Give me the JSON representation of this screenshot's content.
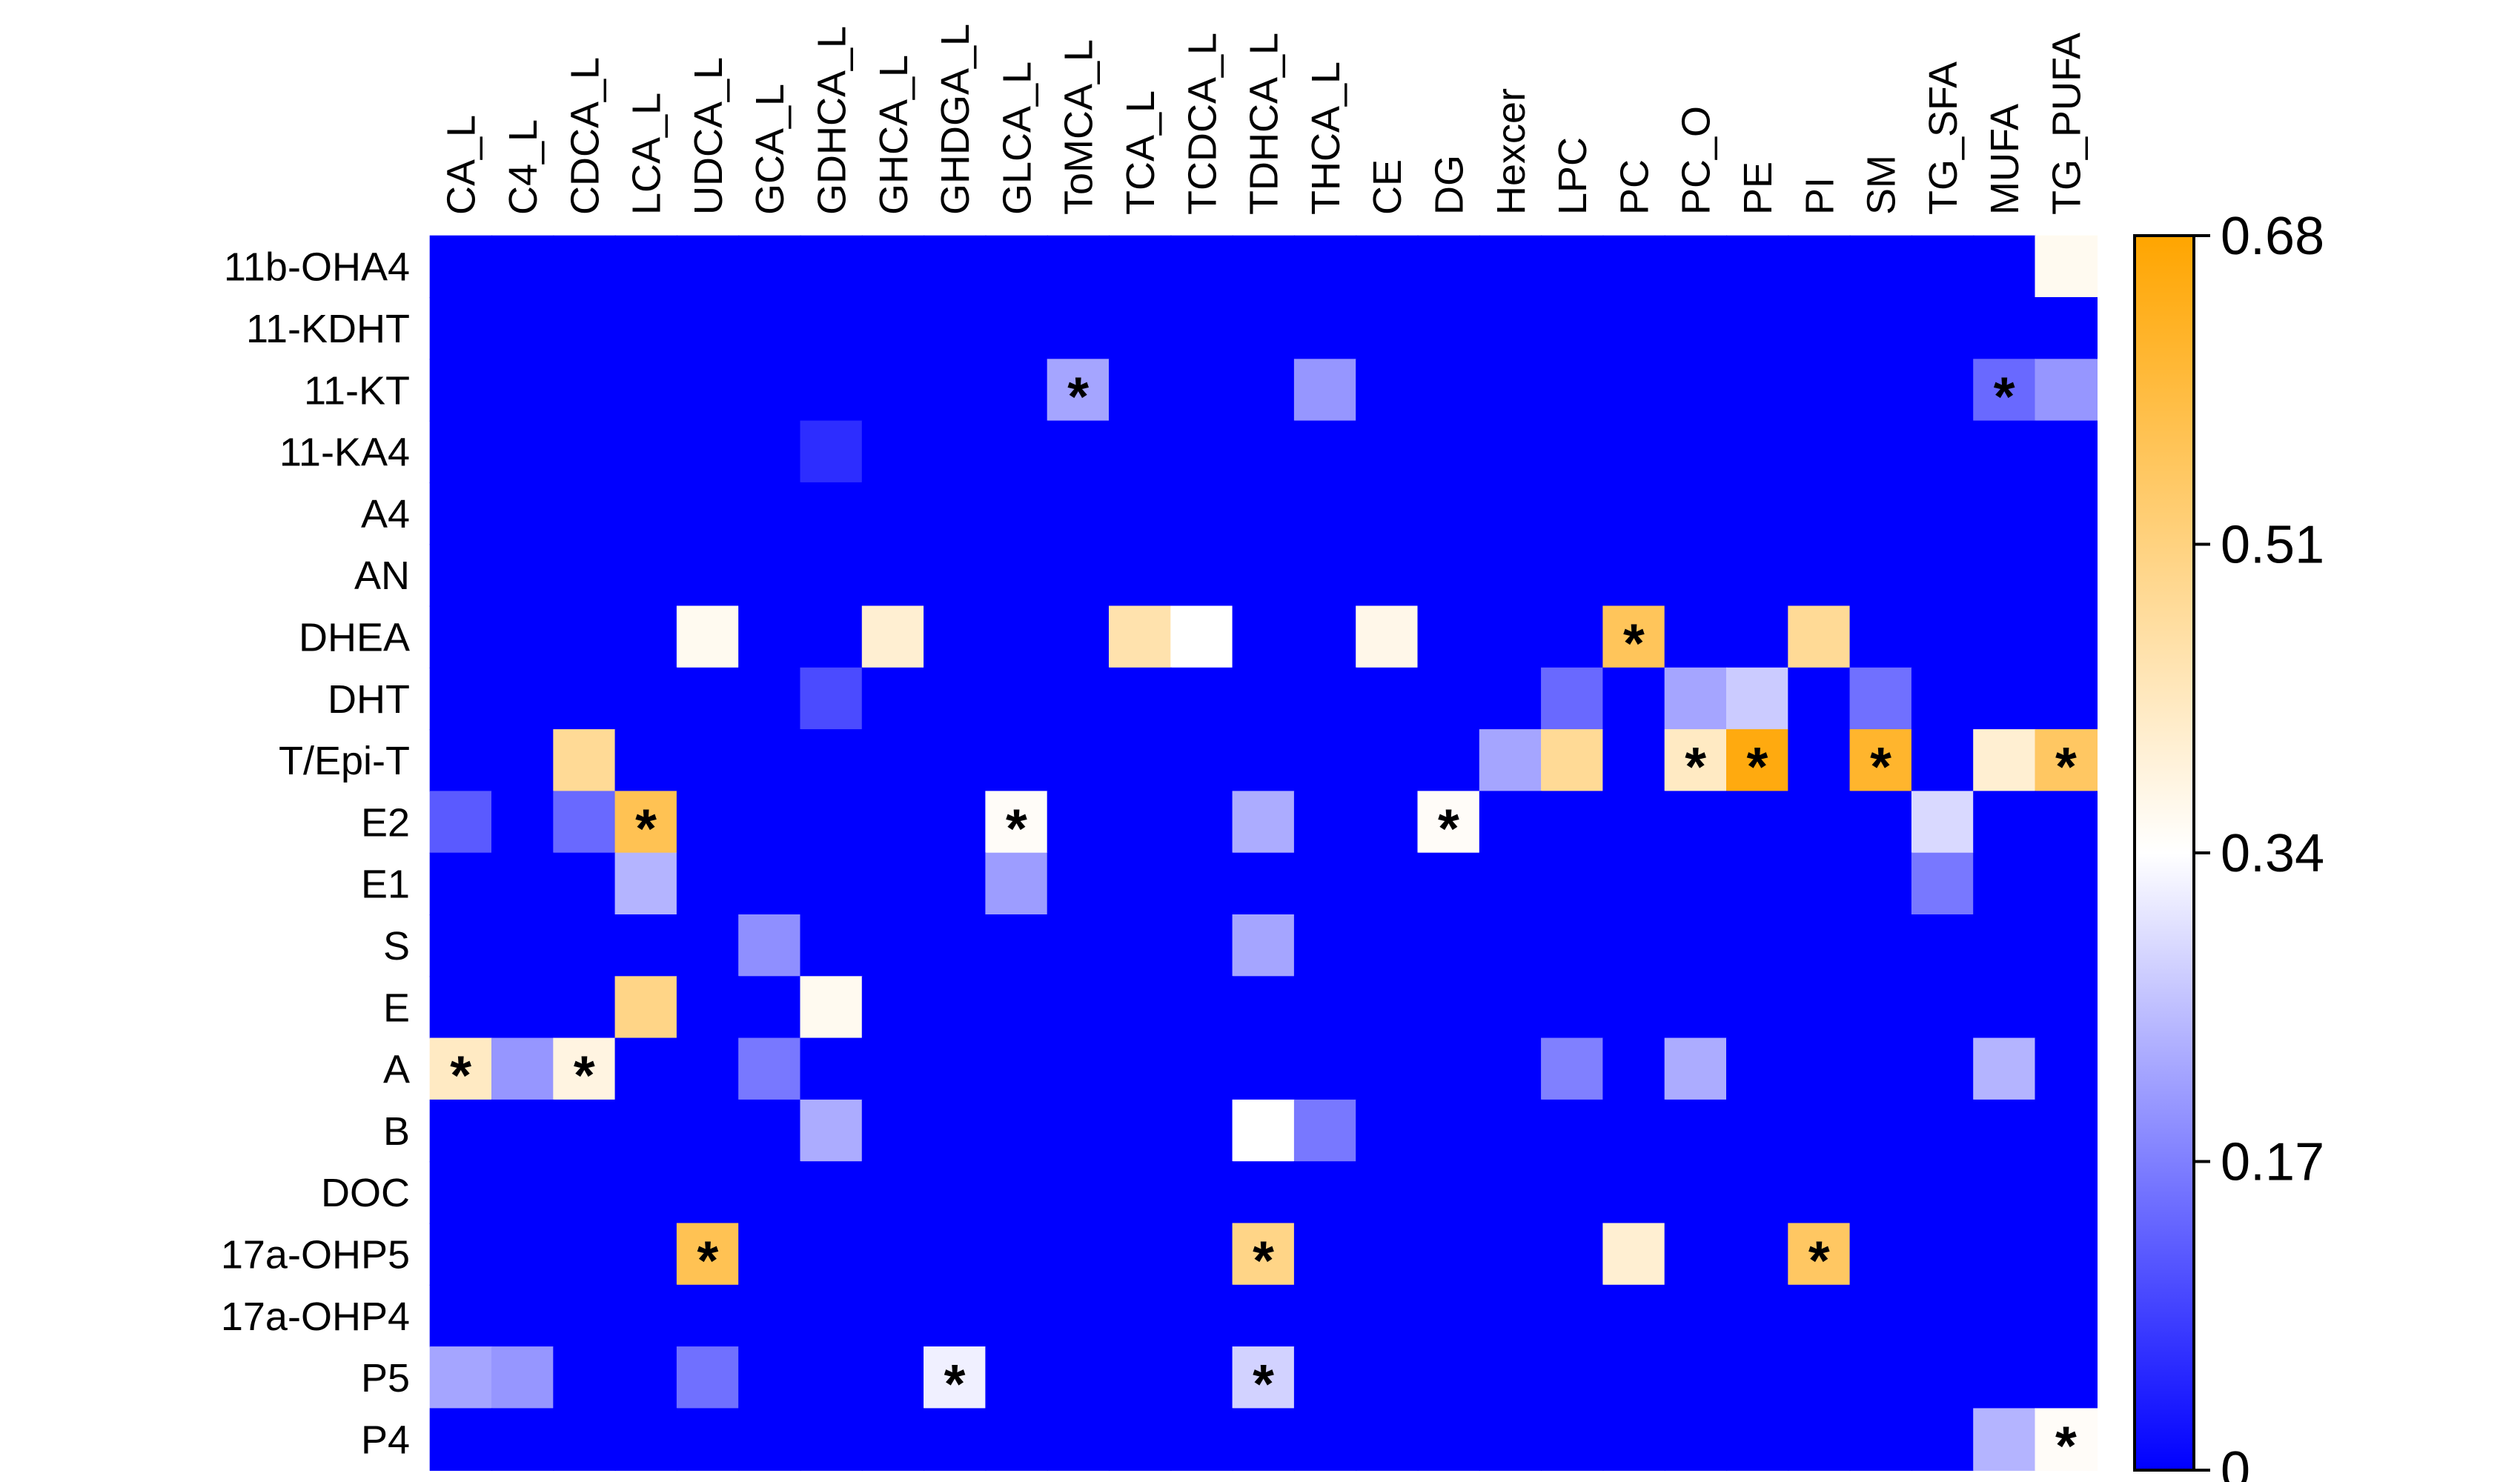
{
  "chart_data": {
    "type": "heatmap",
    "columns": [
      "CA_L",
      "C4_L",
      "CDCA_L",
      "LCA_L",
      "UDCA_L",
      "GCA_L",
      "GDHCA_L",
      "GHCA_L",
      "GHDGA_L",
      "GLCA_L",
      "ToMCA_L",
      "TCA_L",
      "TCDCA_L",
      "TDHCA_L",
      "THCA_L",
      "CE",
      "DG",
      "Hexcer",
      "LPC",
      "PC",
      "PC_O",
      "PE",
      "PI",
      "SM",
      "TG_SFA",
      "MUFA",
      "TG_PUFA"
    ],
    "rows": [
      "11b-OHA4",
      "11-KDHT",
      "11-KT",
      "11-KA4",
      "A4",
      "AN",
      "DHEA",
      "DHT",
      "T/Epi-T",
      "E2",
      "E1",
      "S",
      "E",
      "A",
      "B",
      "DOC",
      "17a-OHP5",
      "17a-OHP4",
      "P5",
      "P4"
    ],
    "values": [
      [
        0,
        0,
        0,
        0,
        0,
        0,
        0,
        0,
        0,
        0,
        0,
        0,
        0,
        0,
        0,
        0,
        0,
        0,
        0,
        0,
        0,
        0,
        0,
        0,
        0,
        0,
        0.36
      ],
      [
        0,
        0,
        0,
        0,
        0,
        0,
        0,
        0,
        0,
        0,
        0,
        0,
        0,
        0,
        0,
        0,
        0,
        0,
        0,
        0,
        0,
        0,
        0,
        0,
        0,
        0,
        0
      ],
      [
        0,
        0,
        0,
        0,
        0,
        0,
        0,
        0,
        0,
        0,
        0.22,
        0,
        0,
        0,
        0.2,
        0,
        0,
        0,
        0,
        0,
        0,
        0,
        0,
        0,
        0,
        0.14,
        0.2
      ],
      [
        0,
        0,
        0,
        0,
        0,
        0,
        0.06,
        0,
        0,
        0,
        0,
        0,
        0,
        0,
        0,
        0,
        0,
        0,
        0,
        0,
        0,
        0,
        0,
        0,
        0,
        0,
        0
      ],
      [
        0,
        0,
        0,
        0,
        0,
        0,
        0,
        0,
        0,
        0,
        0,
        0,
        0,
        0,
        0,
        0,
        0,
        0,
        0,
        0,
        0,
        0,
        0,
        0,
        0,
        0,
        0
      ],
      [
        0,
        0,
        0,
        0,
        0,
        0,
        0,
        0,
        0,
        0,
        0,
        0,
        0,
        0,
        0,
        0,
        0,
        0,
        0,
        0,
        0,
        0,
        0,
        0,
        0,
        0,
        0
      ],
      [
        0,
        0,
        0,
        0,
        0.36,
        0,
        0,
        0.4,
        0,
        0,
        0,
        0.45,
        0.34,
        0,
        0,
        0.37,
        0,
        0,
        0,
        0.56,
        0,
        0,
        0.48,
        0,
        0,
        0,
        0
      ],
      [
        0,
        0,
        0,
        0,
        0,
        0,
        0.1,
        0,
        0,
        0,
        0,
        0,
        0,
        0,
        0,
        0,
        0,
        0,
        0.14,
        0,
        0.22,
        0.27,
        0,
        0.15,
        0,
        0,
        0
      ],
      [
        0,
        0,
        0.48,
        0,
        0,
        0,
        0,
        0,
        0,
        0,
        0,
        0,
        0,
        0,
        0,
        0,
        0,
        0.22,
        0.48,
        0,
        0.42,
        0.66,
        0,
        0.62,
        0,
        0.4,
        0.55
      ],
      [
        0.12,
        0,
        0.14,
        0.57,
        0,
        0,
        0,
        0,
        0,
        0.35,
        0,
        0,
        0,
        0.23,
        0,
        0,
        0.35,
        0,
        0,
        0,
        0,
        0,
        0,
        0,
        0.29,
        0,
        0
      ],
      [
        0,
        0,
        0,
        0.24,
        0,
        0,
        0,
        0,
        0,
        0.21,
        0,
        0,
        0,
        0,
        0,
        0,
        0,
        0,
        0,
        0,
        0,
        0,
        0,
        0,
        0.16,
        0,
        0
      ],
      [
        0,
        0,
        0,
        0,
        0,
        0.19,
        0,
        0,
        0,
        0,
        0,
        0,
        0,
        0.22,
        0,
        0,
        0,
        0,
        0,
        0,
        0,
        0,
        0,
        0,
        0,
        0,
        0
      ],
      [
        0,
        0,
        0,
        0.5,
        0,
        0,
        0.36,
        0,
        0,
        0,
        0,
        0,
        0,
        0,
        0,
        0,
        0,
        0,
        0,
        0,
        0,
        0,
        0,
        0,
        0,
        0,
        0
      ],
      [
        0.42,
        0.2,
        0.38,
        0,
        0,
        0.16,
        0,
        0,
        0,
        0,
        0,
        0,
        0,
        0,
        0,
        0,
        0,
        0,
        0.17,
        0,
        0.23,
        0,
        0,
        0,
        0,
        0.24,
        0
      ],
      [
        0,
        0,
        0,
        0,
        0,
        0,
        0.23,
        0,
        0,
        0,
        0,
        0,
        0,
        0.34,
        0.16,
        0,
        0,
        0,
        0,
        0,
        0,
        0,
        0,
        0,
        0,
        0,
        0
      ],
      [
        0,
        0,
        0,
        0,
        0,
        0,
        0,
        0,
        0,
        0,
        0,
        0,
        0,
        0,
        0,
        0,
        0,
        0,
        0,
        0,
        0,
        0,
        0,
        0,
        0,
        0,
        0
      ],
      [
        0,
        0,
        0,
        0,
        0.57,
        0,
        0,
        0,
        0,
        0,
        0,
        0,
        0,
        0.5,
        0,
        0,
        0,
        0,
        0,
        0.4,
        0,
        0,
        0.55,
        0,
        0,
        0,
        0
      ],
      [
        0,
        0,
        0,
        0,
        0,
        0,
        0,
        0,
        0,
        0,
        0,
        0,
        0,
        0,
        0,
        0,
        0,
        0,
        0,
        0,
        0,
        0,
        0,
        0,
        0,
        0,
        0
      ],
      [
        0.22,
        0.2,
        0,
        0,
        0.15,
        0,
        0,
        0,
        0.32,
        0,
        0,
        0,
        0,
        0.28,
        0,
        0,
        0,
        0,
        0,
        0,
        0,
        0,
        0,
        0,
        0,
        0,
        0
      ],
      [
        0,
        0,
        0,
        0,
        0,
        0,
        0,
        0,
        0,
        0,
        0,
        0,
        0,
        0,
        0,
        0,
        0,
        0,
        0,
        0,
        0,
        0,
        0,
        0,
        0,
        0.24,
        0.35
      ]
    ],
    "significant": [
      [
        2,
        10
      ],
      [
        2,
        25
      ],
      [
        6,
        19
      ],
      [
        8,
        20
      ],
      [
        8,
        21
      ],
      [
        8,
        23
      ],
      [
        8,
        26
      ],
      [
        9,
        3
      ],
      [
        9,
        9
      ],
      [
        9,
        16
      ],
      [
        13,
        0
      ],
      [
        13,
        2
      ],
      [
        16,
        4
      ],
      [
        16,
        13
      ],
      [
        16,
        22
      ],
      [
        18,
        8
      ],
      [
        18,
        13
      ],
      [
        19,
        26
      ]
    ],
    "significance_marker": "*",
    "colorscale": {
      "min": 0,
      "mid": 0.34,
      "max": 0.68,
      "low_color": "#0000ff",
      "mid_color": "#ffffff",
      "high_color": "#ffa500"
    },
    "colorbar_ticks": [
      "0",
      "0.17",
      "0.34",
      "0.51",
      "0.68"
    ],
    "colorbar_tick_values": [
      0,
      0.17,
      0.34,
      0.51,
      0.68
    ]
  }
}
